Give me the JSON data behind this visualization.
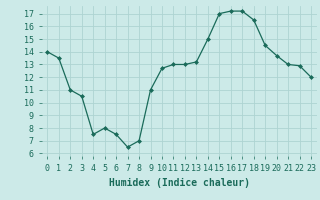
{
  "x": [
    0,
    1,
    2,
    3,
    4,
    5,
    6,
    7,
    8,
    9,
    10,
    11,
    12,
    13,
    14,
    15,
    16,
    17,
    18,
    19,
    20,
    21,
    22,
    23
  ],
  "y": [
    14,
    13.5,
    11,
    10.5,
    7.5,
    8,
    7.5,
    6.5,
    7,
    11,
    12.7,
    13,
    13,
    13.2,
    15,
    17,
    17.2,
    17.2,
    16.5,
    14.5,
    13.7,
    13,
    12.9,
    12
  ],
  "line_color": "#1a6b5a",
  "marker": "D",
  "marker_size": 2.0,
  "bg_color": "#cceae8",
  "grid_color": "#aed4d2",
  "xlabel": "Humidex (Indice chaleur)",
  "xlim": [
    -0.5,
    23.5
  ],
  "ylim": [
    5.8,
    17.6
  ],
  "xticks": [
    0,
    1,
    2,
    3,
    4,
    5,
    6,
    7,
    8,
    9,
    10,
    11,
    12,
    13,
    14,
    15,
    16,
    17,
    18,
    19,
    20,
    21,
    22,
    23
  ],
  "yticks": [
    6,
    7,
    8,
    9,
    10,
    11,
    12,
    13,
    14,
    15,
    16,
    17
  ],
  "xlabel_fontsize": 7,
  "tick_fontsize": 6
}
